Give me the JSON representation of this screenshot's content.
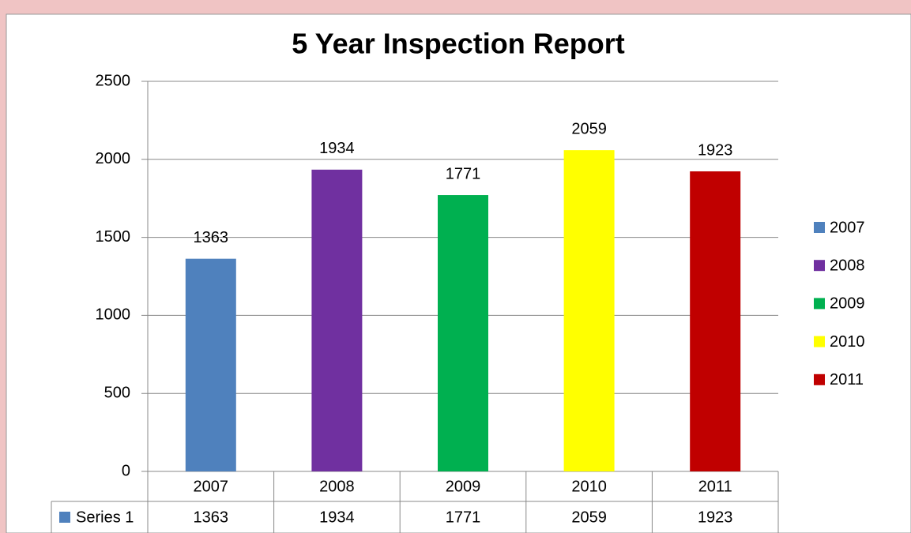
{
  "chart_data": {
    "type": "bar",
    "title": "5 Year Inspection Report",
    "categories": [
      "2007",
      "2008",
      "2009",
      "2010",
      "2011"
    ],
    "series": [
      {
        "name": "Series 1",
        "color": "#4f81bd",
        "values": [
          1363,
          1934,
          1771,
          2059,
          1923
        ]
      }
    ],
    "colors": [
      "#4f81bd",
      "#7030a0",
      "#00b050",
      "#ffff00",
      "#c00000"
    ],
    "ylim": [
      0,
      2500
    ],
    "yticks": [
      0,
      500,
      1000,
      1500,
      2000,
      2500
    ],
    "grid": true,
    "legend": "right"
  }
}
